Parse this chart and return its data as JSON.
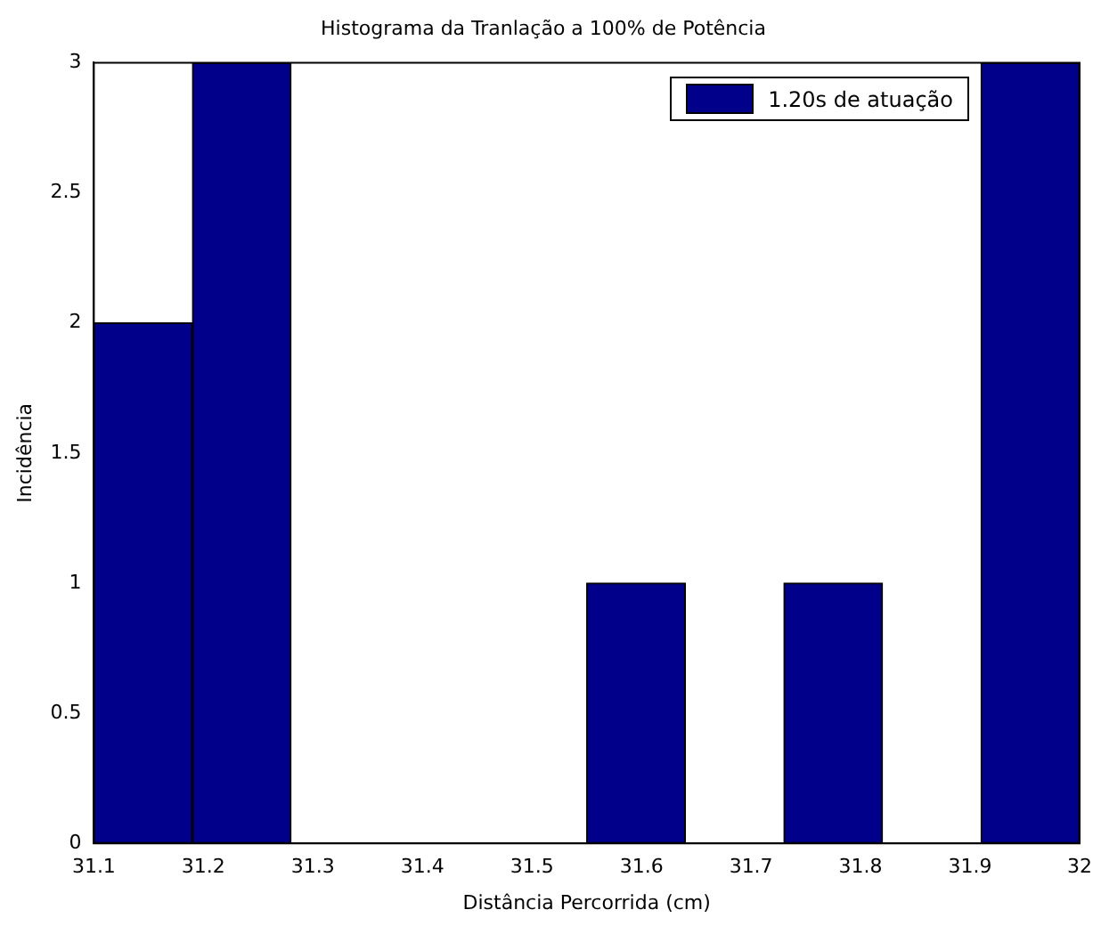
{
  "chart_data": {
    "type": "histogram",
    "title": "Histograma da Tranlação a 100% de Potência",
    "xlabel": "Distância Percorrida (cm)",
    "ylabel": "Incidência",
    "bins": [
      31.1,
      31.19,
      31.28,
      31.37,
      31.46,
      31.55,
      31.64,
      31.73,
      31.82,
      31.91,
      32
    ],
    "series": [
      {
        "name": "1.20s de atuação",
        "color": "#00008b",
        "values": [
          2,
          3,
          0,
          0,
          0,
          1,
          0,
          1,
          0,
          3
        ]
      }
    ],
    "xlim": [
      31.1,
      32
    ],
    "xticks": [
      31.1,
      31.2,
      31.3,
      31.4,
      31.5,
      31.6,
      31.7,
      31.8,
      31.9,
      32
    ],
    "ylim": [
      0,
      3
    ],
    "yticks": [
      0,
      0.5,
      1,
      1.5,
      2,
      2.5,
      3
    ],
    "grid": false,
    "legend": "top right"
  }
}
